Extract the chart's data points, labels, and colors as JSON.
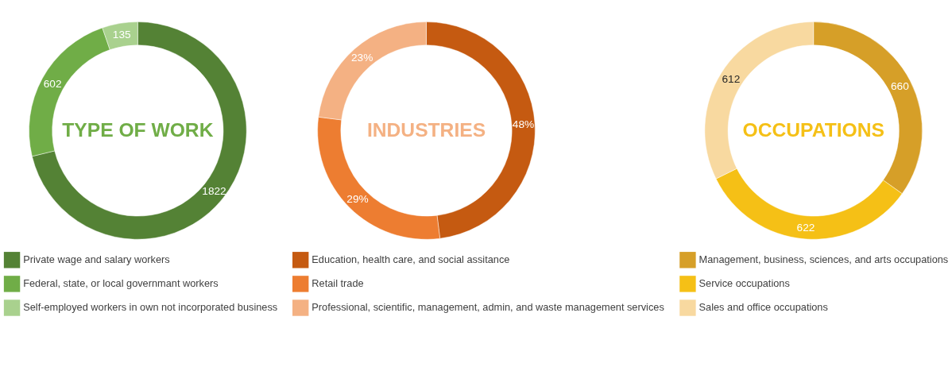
{
  "chart_data": [
    {
      "type": "donut",
      "title": "TYPE OF WORK",
      "categories": [
        "Private wage and salary workers",
        "Federal, state, or local governmant workers",
        "Self-employed workers in own not incorporated business"
      ],
      "values": [
        1822,
        602,
        135
      ],
      "colors": [
        "#548235",
        "#70ad47",
        "#a9d18e"
      ],
      "data_labels": true,
      "legend": "bottom"
    },
    {
      "type": "donut",
      "title": "INDUSTRIES",
      "categories": [
        "Education, health care, and social assitance",
        "Retail trade",
        "Professional, scientific, management, admin, and waste management services"
      ],
      "values": [
        48,
        29,
        23
      ],
      "value_labels": [
        "48%",
        "29%",
        "23%"
      ],
      "colors": [
        "#c55a11",
        "#ed7d31",
        "#f4b183"
      ],
      "legend": "bottom"
    },
    {
      "type": "donut",
      "title": "OCCUPATIONS",
      "categories": [
        "Management, business, sciences, and arts occupations",
        "Service occupations",
        "Sales and office occupations"
      ],
      "values": [
        660,
        622,
        612
      ],
      "colors": [
        "#d69f28",
        "#f5c016",
        "#f8d9a0"
      ],
      "data_labels": true,
      "legend": "bottom"
    }
  ]
}
